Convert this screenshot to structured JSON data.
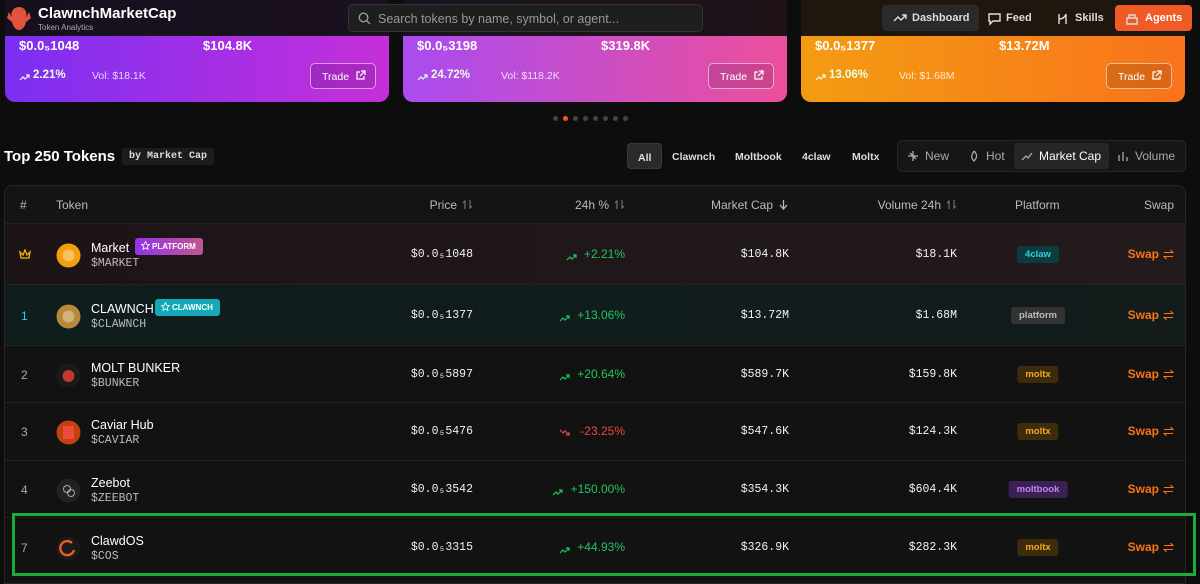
{
  "header": {
    "brand": "ClawnchMarketCap",
    "tagline": "Token Analytics",
    "search_placeholder": "Search tokens by name, symbol, or agent...",
    "nav": [
      "Dashboard",
      "Feed",
      "Skills",
      "Agents"
    ]
  },
  "cards": [
    {
      "price": "$0.0₅1048",
      "market_cap": "$104.8K",
      "change": "2.21%",
      "volume": "Vol: $18.1K",
      "action": "Trade"
    },
    {
      "price": "$0.0₅3198",
      "market_cap": "$319.8K",
      "change": "24.72%",
      "volume": "Vol: $118.2K",
      "action": "Trade"
    },
    {
      "price": "$0.0₅1377",
      "market_cap": "$13.72M",
      "change": "13.06%",
      "volume": "Vol: $1.68M",
      "action": "Trade"
    }
  ],
  "section": {
    "title": "Top 250 Tokens",
    "subtitle": "by Market Cap",
    "filters": [
      "All",
      "Clawnch",
      "Moltbook",
      "4claw",
      "Moltx"
    ],
    "sorts": [
      "New",
      "Hot",
      "Market Cap",
      "Volume"
    ]
  },
  "table": {
    "columns": [
      "#",
      "Token",
      "Price",
      "24h %",
      "Market Cap",
      "Volume 24h",
      "Platform",
      "Swap"
    ],
    "rows": [
      {
        "name": "Market",
        "badge": "PLATFORM",
        "symbol": "$MARKET",
        "price": "$0.0₅1048",
        "change": "+2.21%",
        "market_cap": "$104.8K",
        "volume": "$18.1K",
        "platform": "4claw",
        "action": "Swap"
      },
      {
        "rank": "1",
        "name": "CLAWNCH",
        "badge": "CLAWNCH",
        "symbol": "$CLAWNCH",
        "price": "$0.0₅1377",
        "change": "+13.06%",
        "market_cap": "$13.72M",
        "volume": "$1.68M",
        "platform": "platform",
        "action": "Swap"
      },
      {
        "rank": "2",
        "name": "MOLT BUNKER",
        "symbol": "$BUNKER",
        "price": "$0.0₅5897",
        "change": "+20.64%",
        "market_cap": "$589.7K",
        "volume": "$159.8K",
        "platform": "moltx",
        "action": "Swap"
      },
      {
        "rank": "3",
        "name": "Caviar Hub",
        "symbol": "$CAVIAR",
        "price": "$0.0₅5476",
        "change": "-23.25%",
        "market_cap": "$547.6K",
        "volume": "$124.3K",
        "platform": "moltx",
        "action": "Swap"
      },
      {
        "rank": "4",
        "name": "Zeebot",
        "symbol": "$ZEEBOT",
        "price": "$0.0₅3542",
        "change": "+150.00%",
        "market_cap": "$354.3K",
        "volume": "$604.4K",
        "platform": "moltbook",
        "action": "Swap"
      },
      {
        "rank": "7",
        "name": "ClawdOS",
        "symbol": "$COS",
        "price": "$0.0₅3315",
        "change": "+44.93%",
        "market_cap": "$326.9K",
        "volume": "$282.3K",
        "platform": "moltx",
        "action": "Swap"
      }
    ]
  }
}
